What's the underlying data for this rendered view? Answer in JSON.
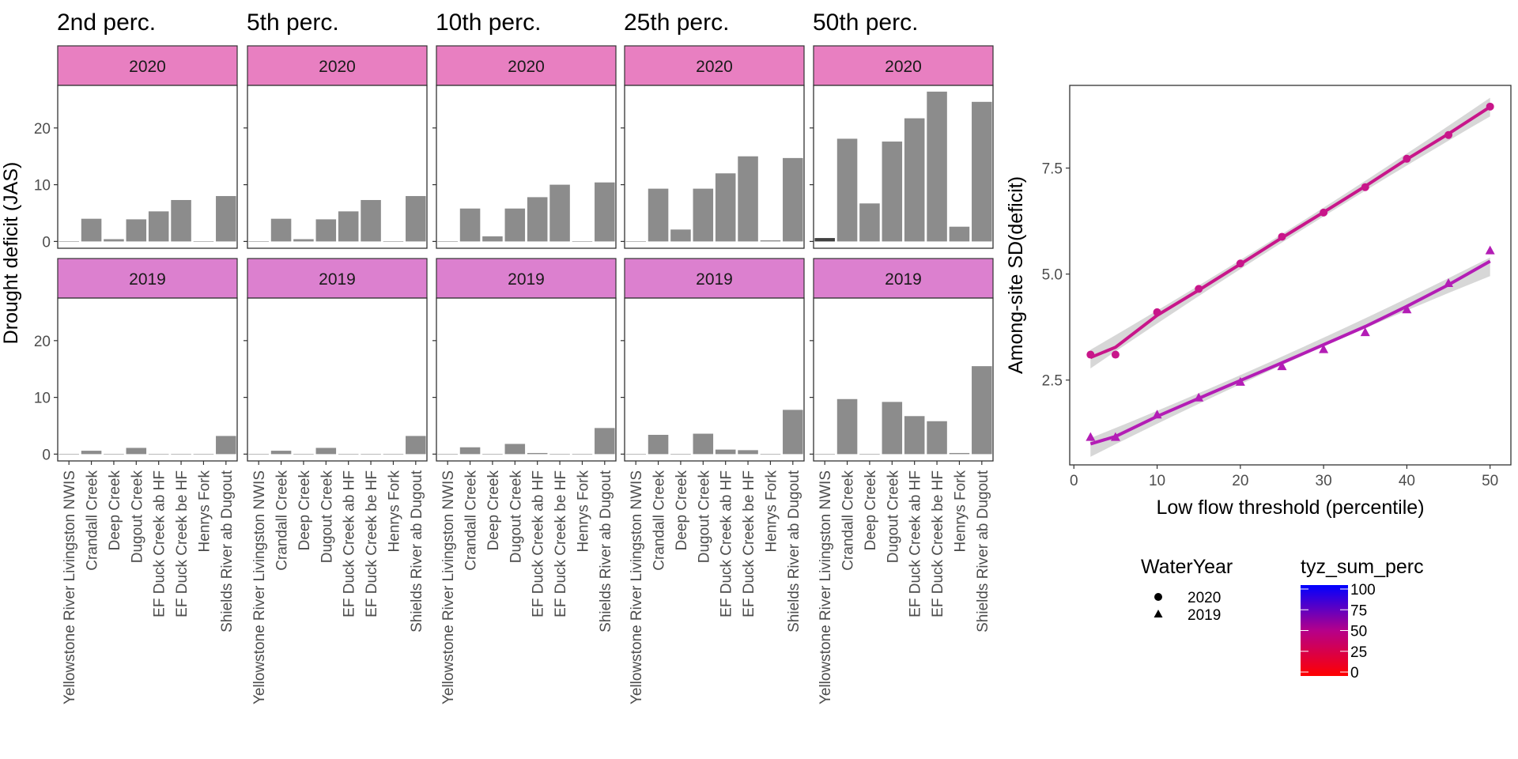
{
  "chart_data": [
    {
      "type": "bar",
      "ylabel": "Drought deficit (JAS)",
      "yticks": [
        0,
        10,
        20
      ],
      "ylim": [
        -1.2,
        27.5
      ],
      "strip_colors": {
        "2020": "#E87FC1",
        "2019": "#DC80CF"
      },
      "bar_color": "#8C8C8C",
      "categories": [
        "Yellowstone River Livingston NWIS",
        "Crandall Creek",
        "Deep Creek",
        "Dugout Creek",
        "EF Duck Creek ab HF",
        "EF Duck Creek be HF",
        "Henrys Fork",
        "Shields River ab Dugout"
      ],
      "panels": [
        {
          "title": "2nd perc.",
          "rows": [
            {
              "year": "2020",
              "values": [
                0,
                4.0,
                0.4,
                3.9,
                5.3,
                7.3,
                0,
                8.0
              ]
            },
            {
              "year": "2019",
              "values": [
                0,
                0.6,
                0,
                1.1,
                0,
                0,
                0,
                3.2
              ]
            }
          ]
        },
        {
          "title": "5th perc.",
          "rows": [
            {
              "year": "2020",
              "values": [
                0,
                4.0,
                0.4,
                3.9,
                5.3,
                7.3,
                0,
                8.0
              ]
            },
            {
              "year": "2019",
              "values": [
                0,
                0.6,
                0,
                1.1,
                0,
                0,
                0,
                3.2
              ]
            }
          ]
        },
        {
          "title": "10th perc.",
          "rows": [
            {
              "year": "2020",
              "values": [
                0,
                5.8,
                0.9,
                5.8,
                7.8,
                10.0,
                0,
                10.4
              ]
            },
            {
              "year": "2019",
              "values": [
                0,
                1.2,
                0,
                1.8,
                0.2,
                0,
                0,
                4.6
              ]
            }
          ]
        },
        {
          "title": "25th perc.",
          "rows": [
            {
              "year": "2020",
              "values": [
                0,
                9.3,
                2.1,
                9.3,
                12.0,
                15.0,
                0.2,
                14.7
              ]
            },
            {
              "year": "2019",
              "values": [
                0,
                3.4,
                0,
                3.6,
                0.8,
                0.7,
                0,
                7.8
              ]
            }
          ]
        },
        {
          "title": "50th perc.",
          "rows": [
            {
              "year": "2020",
              "values": [
                0.6,
                18.1,
                6.7,
                17.6,
                21.7,
                26.4,
                2.6,
                24.6
              ]
            },
            {
              "year": "2019",
              "values": [
                0,
                9.7,
                0,
                9.2,
                6.7,
                5.8,
                0.2,
                15.5
              ]
            }
          ]
        }
      ]
    },
    {
      "type": "scatter",
      "xlabel": "Low flow threshold (percentile)",
      "ylabel": "Among-site SD(deficit)",
      "xlim": [
        -0.5,
        52.5
      ],
      "ylim": [
        0.5,
        9.45
      ],
      "xticks": [
        0,
        10,
        20,
        30,
        40,
        50
      ],
      "yticks": [
        2.5,
        5.0,
        7.5
      ],
      "ytick_labels": [
        "2.5",
        "5.0",
        "7.5"
      ],
      "grid": false,
      "x": [
        2,
        5,
        10,
        15,
        20,
        25,
        30,
        35,
        40,
        45,
        50
      ],
      "series": [
        {
          "name": "2020",
          "shape": "circle",
          "color": "#C8168A",
          "values": [
            3.1,
            3.1,
            4.1,
            4.65,
            5.25,
            5.88,
            6.45,
            7.05,
            7.72,
            8.28,
            8.95
          ]
        },
        {
          "name": "2019",
          "shape": "triangle",
          "color": "#B31DB5",
          "values": [
            1.15,
            1.15,
            1.68,
            2.08,
            2.45,
            2.82,
            3.22,
            3.62,
            4.16,
            4.78,
            5.55
          ]
        }
      ],
      "legend": {
        "placement": "bottom",
        "shape_title": "WaterYear",
        "shape_items": [
          "2020",
          "2019"
        ],
        "color_title": "tyz_sum_perc",
        "color_ticks": [
          "100",
          "75",
          "50",
          "25",
          "0"
        ],
        "color_low": "#FF0000",
        "color_high": "#0000FF"
      }
    }
  ]
}
